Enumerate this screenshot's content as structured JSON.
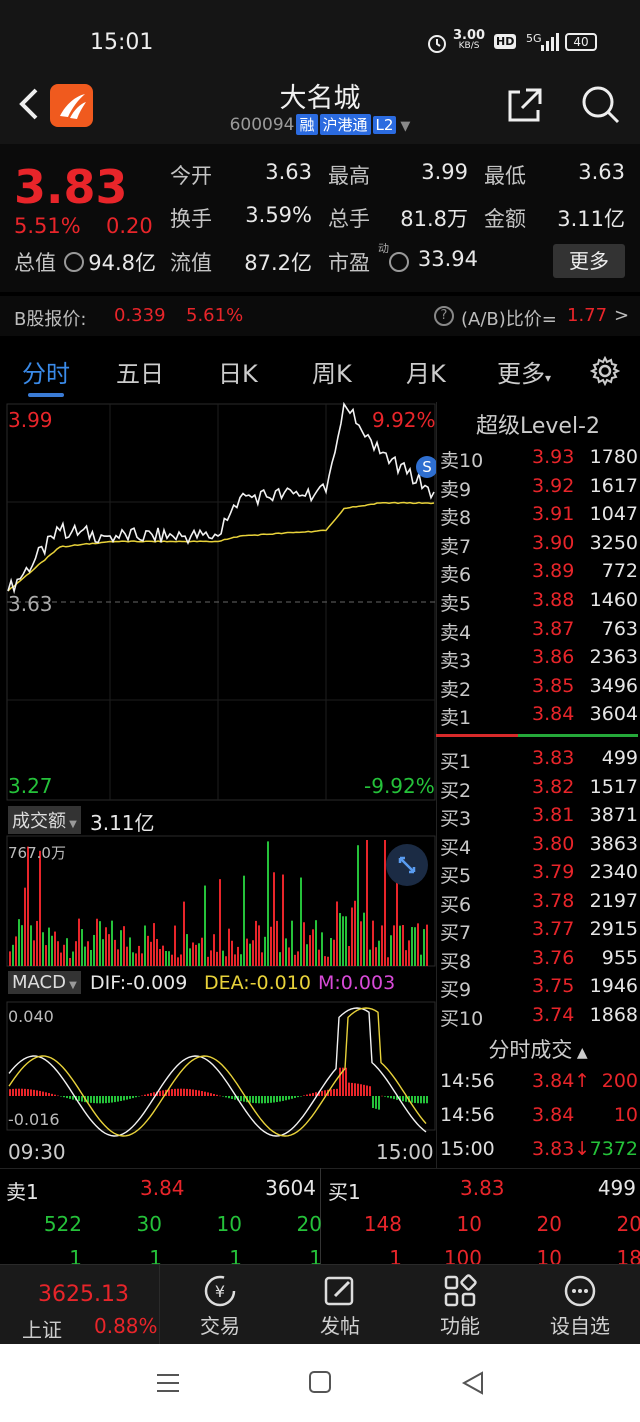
{
  "status_bar": {
    "time": "15:01",
    "net_speed": "3.00",
    "net_unit": "KB/S",
    "hd": "HD",
    "signal": "5G",
    "battery": "40"
  },
  "header": {
    "back_icon": "back-chevron-icon",
    "name": "大名城",
    "code": "600094",
    "tags": [
      "融",
      "沪港通",
      "L2"
    ]
  },
  "quote": {
    "price": "3.83",
    "change_pct": "5.51%",
    "change": "0.20",
    "fields": [
      {
        "label": "今开",
        "value": "3.63",
        "color": "white"
      },
      {
        "label": "最高",
        "value": "3.99",
        "color": "red"
      },
      {
        "label": "最低",
        "value": "3.63",
        "color": "white"
      },
      {
        "label": "换手",
        "value": "3.59%",
        "color": "white"
      },
      {
        "label": "总手",
        "value": "81.8万",
        "color": "white"
      },
      {
        "label": "金额",
        "value": "3.11亿",
        "color": "white"
      },
      {
        "label": "总值",
        "value": "94.8亿",
        "color": "white"
      },
      {
        "label": "流值",
        "value": "87.2亿",
        "color": "white"
      },
      {
        "label": "市盈",
        "value": "33.94",
        "color": "white"
      }
    ],
    "pe_superscript": "动",
    "more_label": "更多"
  },
  "bshare": {
    "label": "B股报价:",
    "price": "0.339",
    "pct": "5.61%",
    "ratio_label": "(A/B)比价=",
    "ratio": "1.77",
    "arrow": ">"
  },
  "tabs": [
    "分时",
    "五日",
    "日K",
    "周K",
    "月K",
    "更多"
  ],
  "chart": {
    "high_label": "3.99",
    "high_pct": "9.92%",
    "mid_label": "3.63",
    "low_label": "3.27",
    "low_pct": "-9.92%",
    "volume_label": "成交额",
    "volume_value": "3.11亿",
    "volume_max": "767.0万",
    "macd_label": "MACD",
    "dif": "DIF:-0.009",
    "dea": "DEA:-0.010",
    "m": "M:0.003",
    "macd_top": "0.040",
    "macd_bottom": "-0.016",
    "time_start": "09:30",
    "time_end": "15:00",
    "marker": "S"
  },
  "chart_data": {
    "type": "line",
    "title": "",
    "xlabel": "",
    "ylabel": "",
    "ylim": [
      3.27,
      3.99
    ],
    "x": [
      "09:30",
      "10:00",
      "10:30",
      "11:30",
      "13:30",
      "14:00",
      "14:30",
      "14:40",
      "15:00"
    ],
    "series": [
      {
        "values": [
          3.65,
          3.76,
          3.75,
          3.75,
          3.82,
          3.83,
          3.99,
          3.9,
          3.83
        ]
      },
      {
        "values": [
          3.65,
          3.73,
          3.74,
          3.74,
          3.75,
          3.76,
          3.8,
          3.81,
          3.81
        ]
      }
    ]
  },
  "order_book": {
    "title": "超级Level-2",
    "asks": [
      {
        "name": "卖10",
        "price": "3.93",
        "vol": "1780"
      },
      {
        "name": "卖9",
        "price": "3.92",
        "vol": "1617"
      },
      {
        "name": "卖8",
        "price": "3.91",
        "vol": "1047"
      },
      {
        "name": "卖7",
        "price": "3.90",
        "vol": "3250"
      },
      {
        "name": "卖6",
        "price": "3.89",
        "vol": "772"
      },
      {
        "name": "卖5",
        "price": "3.88",
        "vol": "1460"
      },
      {
        "name": "卖4",
        "price": "3.87",
        "vol": "763"
      },
      {
        "name": "卖3",
        "price": "3.86",
        "vol": "2363"
      },
      {
        "name": "卖2",
        "price": "3.85",
        "vol": "3496"
      },
      {
        "name": "卖1",
        "price": "3.84",
        "vol": "3604"
      }
    ],
    "bids": [
      {
        "name": "买1",
        "price": "3.83",
        "vol": "499"
      },
      {
        "name": "买2",
        "price": "3.82",
        "vol": "1517"
      },
      {
        "name": "买3",
        "price": "3.81",
        "vol": "3871"
      },
      {
        "name": "买4",
        "price": "3.80",
        "vol": "3863"
      },
      {
        "name": "买5",
        "price": "3.79",
        "vol": "2340"
      },
      {
        "name": "买6",
        "price": "3.78",
        "vol": "2197"
      },
      {
        "name": "买7",
        "price": "3.77",
        "vol": "2915"
      },
      {
        "name": "买8",
        "price": "3.76",
        "vol": "955"
      },
      {
        "name": "买9",
        "price": "3.75",
        "vol": "1946"
      },
      {
        "name": "买10",
        "price": "3.74",
        "vol": "1868"
      }
    ],
    "trades_title": "分时成交",
    "trades": [
      {
        "time": "14:56",
        "price": "3.84",
        "arrow": "↑",
        "vol": "200"
      },
      {
        "time": "14:56",
        "price": "3.84",
        "arrow": "",
        "vol": "10"
      },
      {
        "time": "15:00",
        "price": "3.83",
        "arrow": "↓",
        "vol": "7372"
      }
    ]
  },
  "bottom_book": {
    "ask": {
      "label": "卖1",
      "price": "3.84",
      "vol": "3604",
      "queue1": [
        "522",
        "30",
        "10",
        "20"
      ],
      "queue2": [
        "1",
        "1",
        "1",
        "1"
      ]
    },
    "bid": {
      "label": "买1",
      "price": "3.83",
      "vol": "499",
      "queue1": [
        "148",
        "10",
        "20",
        "20"
      ],
      "queue2": [
        "1",
        "100",
        "10",
        "18"
      ]
    }
  },
  "nav": {
    "index_value": "3625.13",
    "index_name": "上证",
    "index_pct": "0.88%",
    "items": [
      "交易",
      "发帖",
      "功能",
      "设自选"
    ]
  }
}
